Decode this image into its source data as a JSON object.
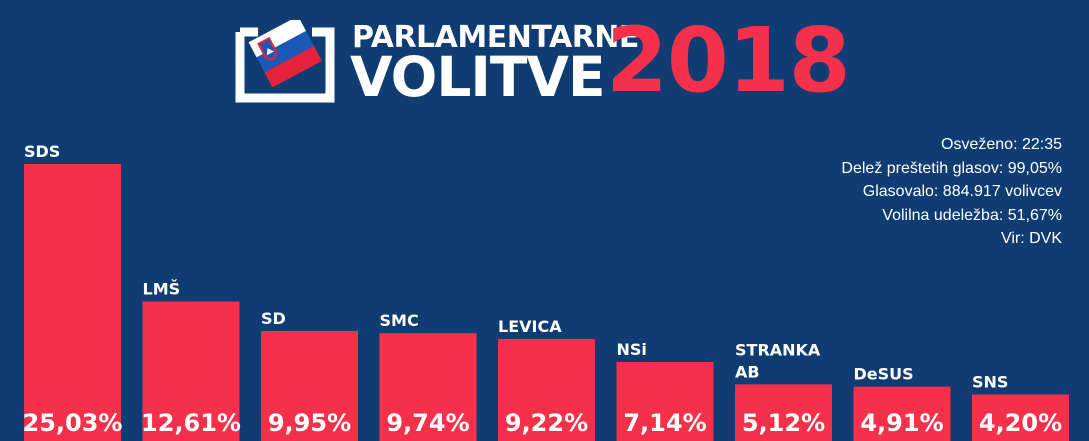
{
  "header": {
    "title_top": "PARLAMENTARNE",
    "title_bottom": "VOLITVE",
    "year": "2018"
  },
  "info": {
    "refreshed": "Osveženo: 22:35",
    "counted_share": "Delež preštetih glasov: 99,05%",
    "voted": "Glasovalo: 884.917 volivcev",
    "turnout": "Volilna udeležba: 51,67%",
    "source": "Vir: DVK"
  },
  "colors": {
    "background": "#0f3c72",
    "bar": "#f5304a",
    "text": "#ffffff"
  },
  "icons": [
    "ballot-box-flag-icon"
  ],
  "chart_data": {
    "type": "bar",
    "categories": [
      "SDS",
      "LMŠ",
      "SD",
      "SMC",
      "LEVICA",
      "NSi",
      "STRANKA AB",
      "DeSUS",
      "SNS"
    ],
    "category_lines": [
      [
        "SDS"
      ],
      [
        "LMŠ"
      ],
      [
        "SD"
      ],
      [
        "SMC"
      ],
      [
        "LEVICA"
      ],
      [
        "NSi"
      ],
      [
        "STRANKA",
        "AB"
      ],
      [
        "DeSUS"
      ],
      [
        "SNS"
      ]
    ],
    "values": [
      25.03,
      12.61,
      9.95,
      9.74,
      9.22,
      7.14,
      5.12,
      4.91,
      4.2
    ],
    "value_labels": [
      "25,03%",
      "12,61%",
      "9,95%",
      "9,74%",
      "9,22%",
      "7,14%",
      "5,12%",
      "4,91%",
      "4,20%"
    ],
    "title": "",
    "xlabel": "",
    "ylabel": "",
    "ylim": [
      0,
      25.03
    ],
    "grid": false,
    "legend": "none"
  }
}
